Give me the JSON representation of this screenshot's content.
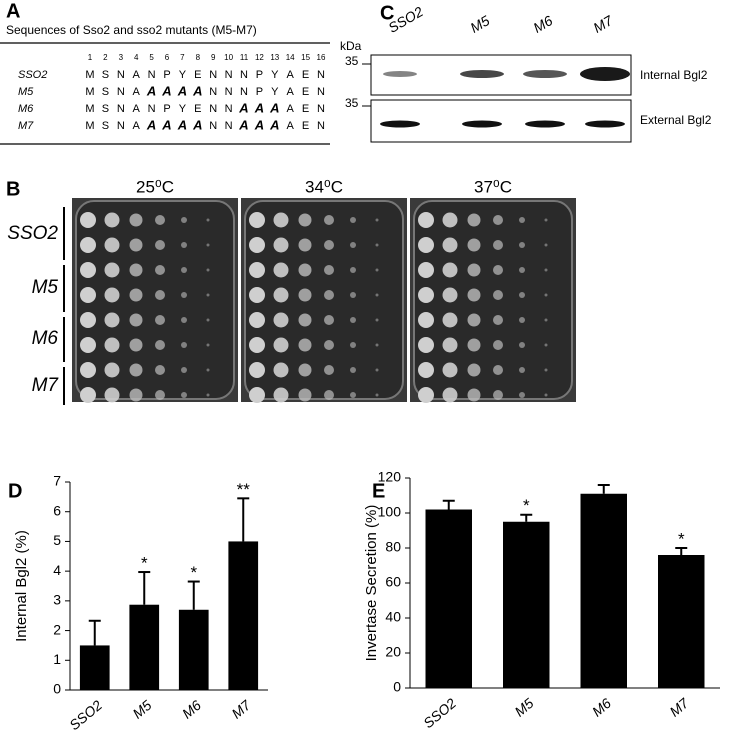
{
  "panel_a": {
    "label": "A",
    "title": "Sequences of Sso2 and sso2 mutants (M5-M7)",
    "positions": [
      1,
      2,
      3,
      4,
      5,
      6,
      7,
      8,
      9,
      10,
      11,
      12,
      13,
      14,
      15,
      16
    ],
    "rows": [
      {
        "name": "SSO2",
        "residues": [
          "M",
          "S",
          "N",
          "A",
          "N",
          "P",
          "Y",
          "E",
          "N",
          "N",
          "N",
          "P",
          "Y",
          "A",
          "E",
          "N"
        ]
      },
      {
        "name": "M5",
        "residues": [
          "M",
          "S",
          "N",
          "A",
          "A",
          "A",
          "A",
          "A",
          "N",
          "N",
          "N",
          "P",
          "Y",
          "A",
          "E",
          "N"
        ]
      },
      {
        "name": "M6",
        "residues": [
          "M",
          "S",
          "N",
          "A",
          "N",
          "P",
          "Y",
          "E",
          "N",
          "N",
          "A",
          "A",
          "A",
          "A",
          "E",
          "N"
        ]
      },
      {
        "name": "M7",
        "residues": [
          "M",
          "S",
          "N",
          "A",
          "A",
          "A",
          "A",
          "A",
          "N",
          "N",
          "A",
          "A",
          "A",
          "A",
          "E",
          "N"
        ]
      }
    ]
  },
  "panel_b": {
    "label": "B",
    "temperatures": [
      "25⁰C",
      "34⁰C",
      "37⁰C"
    ],
    "strains": [
      "SSO2",
      "M5",
      "M6",
      "M7"
    ]
  },
  "panel_c": {
    "label": "C",
    "unit": "kDa",
    "markers": [
      "35",
      "35"
    ],
    "lanes": [
      "SSO2",
      "M5",
      "M6",
      "M7"
    ],
    "blots": [
      "Internal Bgl2",
      "External Bgl2"
    ]
  },
  "chart_data": [
    {
      "type": "bar",
      "panel_label": "D",
      "y_label": "Internal Bgl2 (%)",
      "categories": [
        "SSO2",
        "M5",
        "M6",
        "M7"
      ],
      "values": [
        1.5,
        2.87,
        2.7,
        5.0
      ],
      "errors": [
        0.83,
        1.1,
        0.95,
        1.45
      ],
      "significance": [
        null,
        "*",
        "*",
        "**"
      ],
      "color": "#000000",
      "ylim": [
        0,
        7
      ],
      "yticks": [
        0,
        1,
        2,
        3,
        4,
        5,
        6,
        7
      ]
    },
    {
      "type": "bar",
      "panel_label": "E",
      "y_label": "Invertase Secretion (%)",
      "categories": [
        "SSO2",
        "M5",
        "M6",
        "M7"
      ],
      "values": [
        102,
        95,
        111,
        76
      ],
      "errors": [
        5,
        4,
        5,
        4
      ],
      "significance": [
        null,
        "*",
        null,
        "*"
      ],
      "color": "#000000",
      "ylim": [
        0,
        120
      ],
      "yticks": [
        0,
        20,
        40,
        60,
        80,
        100,
        120
      ]
    }
  ]
}
